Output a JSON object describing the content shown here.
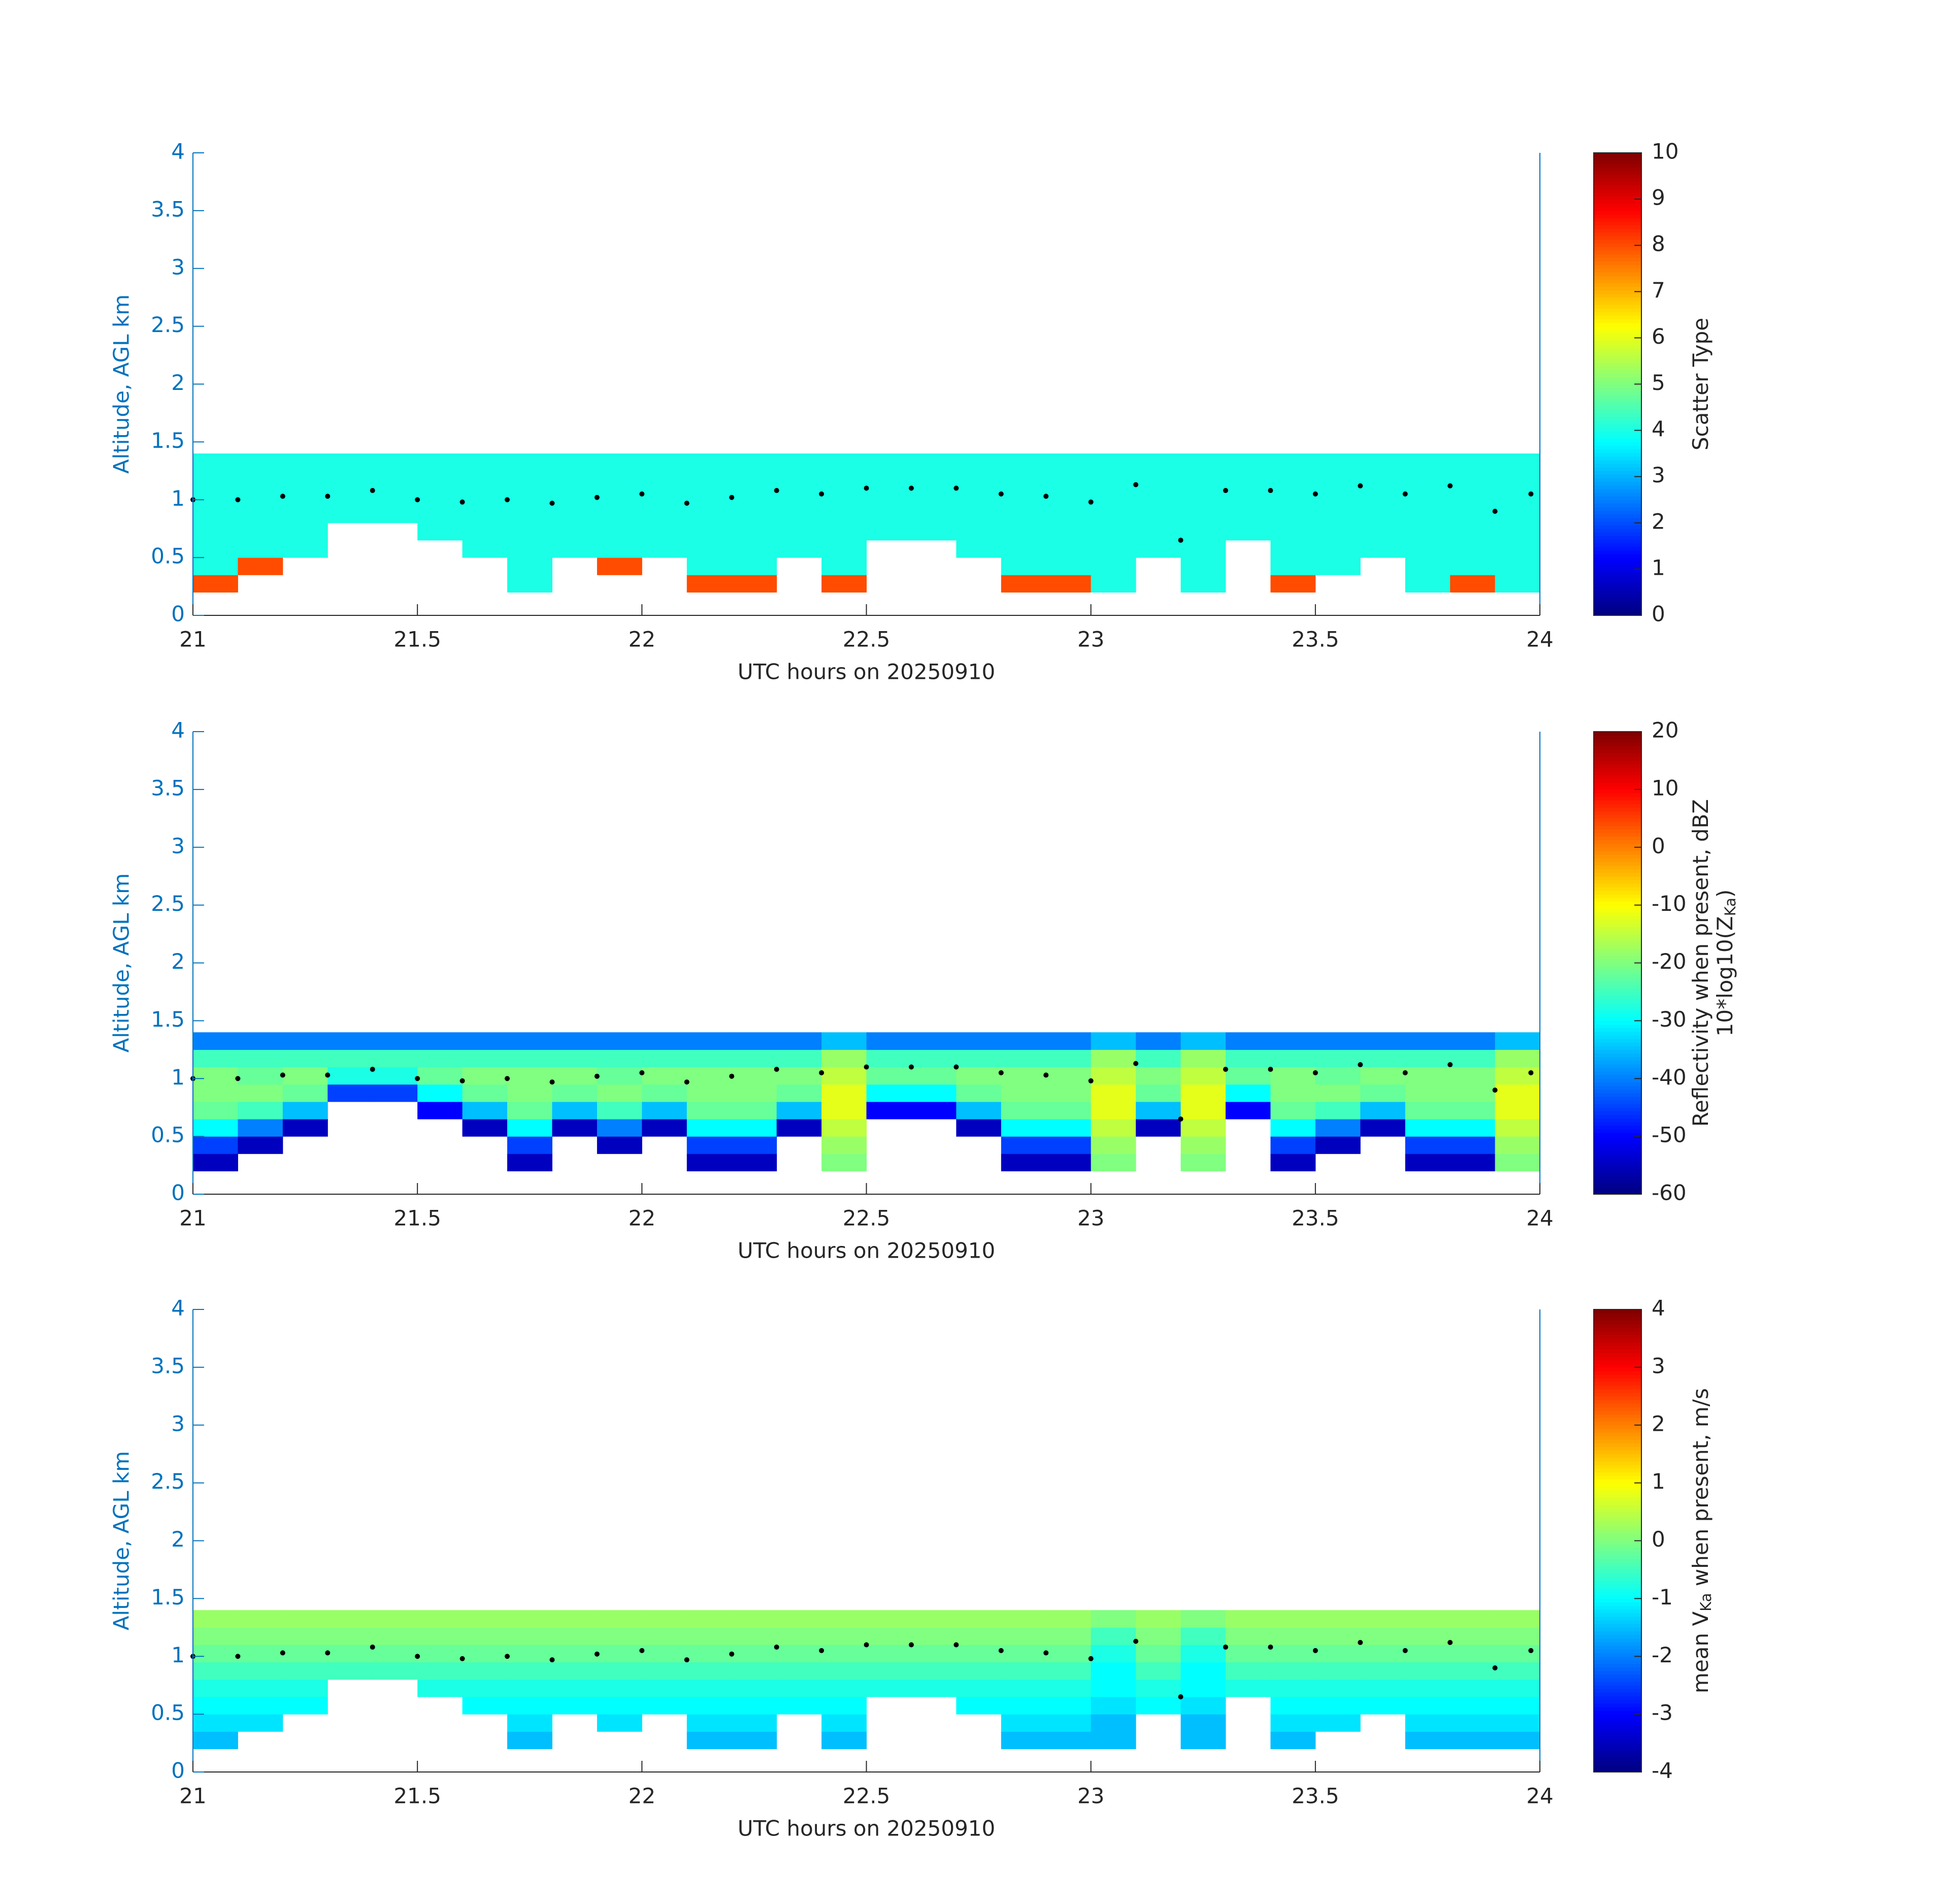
{
  "chart_data": [
    {
      "type": "heatmap",
      "colormap": "jet",
      "xlabel": "UTC hours on 20250910",
      "ylabel": "Altitude, AGL km",
      "colorbar_label": [
        [
          "Scatter Type"
        ]
      ],
      "xlim": [
        21,
        24
      ],
      "xticks": [
        21,
        21.5,
        22,
        22.5,
        23,
        23.5,
        24
      ],
      "ylim": [
        0,
        4
      ],
      "yticks": [
        0,
        0.5,
        1,
        1.5,
        2,
        2.5,
        3,
        3.5,
        4
      ],
      "clim": [
        0,
        10
      ],
      "cticks": [
        0,
        1,
        2,
        3,
        4,
        5,
        6,
        7,
        8,
        9,
        10
      ],
      "xbins": [
        21,
        21.1,
        21.2,
        21.3,
        21.4,
        21.5,
        21.6,
        21.7,
        21.8,
        21.9,
        22,
        22.1,
        22.2,
        22.3,
        22.4,
        22.5,
        22.6,
        22.7,
        22.8,
        22.9,
        23,
        23.1,
        23.2,
        23.3,
        23.4,
        23.5,
        23.6,
        23.7,
        23.8,
        23.9,
        24
      ],
      "ybins": [
        0.2,
        0.35,
        0.5,
        0.65,
        0.8,
        0.95,
        1.1,
        1.25,
        1.4
      ],
      "values": [
        [
          8,
          4,
          4,
          4,
          4,
          4,
          4,
          4
        ],
        [
          null,
          8,
          4,
          4,
          4,
          4,
          4,
          4
        ],
        [
          null,
          null,
          4,
          4,
          4,
          4,
          4,
          4
        ],
        [
          null,
          null,
          null,
          null,
          4,
          4,
          4,
          4
        ],
        [
          null,
          null,
          null,
          null,
          4,
          4,
          4,
          4
        ],
        [
          null,
          null,
          null,
          4,
          4,
          4,
          4,
          4
        ],
        [
          null,
          null,
          4,
          4,
          4,
          4,
          4,
          4
        ],
        [
          4,
          4,
          4,
          4,
          4,
          4,
          4,
          4
        ],
        [
          null,
          null,
          4,
          4,
          4,
          4,
          4,
          4
        ],
        [
          null,
          8,
          4,
          4,
          4,
          4,
          4,
          4
        ],
        [
          null,
          null,
          4,
          4,
          4,
          4,
          4,
          4
        ],
        [
          8,
          4,
          4,
          4,
          4,
          4,
          4,
          4
        ],
        [
          8,
          4,
          4,
          4,
          4,
          4,
          4,
          4
        ],
        [
          null,
          null,
          4,
          4,
          4,
          4,
          4,
          4
        ],
        [
          8,
          4,
          4,
          4,
          4,
          4,
          4,
          4
        ],
        [
          null,
          null,
          null,
          4,
          4,
          4,
          4,
          4
        ],
        [
          null,
          null,
          null,
          4,
          4,
          4,
          4,
          4
        ],
        [
          null,
          null,
          4,
          4,
          4,
          4,
          4,
          4
        ],
        [
          8,
          4,
          4,
          4,
          4,
          4,
          4,
          4
        ],
        [
          8,
          4,
          4,
          4,
          4,
          4,
          4,
          4
        ],
        [
          4,
          4,
          4,
          4,
          4,
          4,
          4,
          4
        ],
        [
          null,
          null,
          4,
          4,
          4,
          4,
          4,
          4
        ],
        [
          4,
          4,
          4,
          4,
          4,
          4,
          4,
          4
        ],
        [
          null,
          null,
          null,
          4,
          4,
          4,
          4,
          4
        ],
        [
          8,
          4,
          4,
          4,
          4,
          4,
          4,
          4
        ],
        [
          null,
          4,
          4,
          4,
          4,
          4,
          4,
          4
        ],
        [
          null,
          null,
          4,
          4,
          4,
          4,
          4,
          4
        ],
        [
          4,
          4,
          4,
          4,
          4,
          4,
          4,
          4
        ],
        [
          8,
          4,
          4,
          4,
          4,
          4,
          4,
          4
        ],
        [
          4,
          4,
          4,
          4,
          4,
          4,
          4,
          4
        ]
      ],
      "points": {
        "color": "#000000",
        "x": [
          21,
          21.1,
          21.2,
          21.3,
          21.4,
          21.5,
          21.6,
          21.7,
          21.8,
          21.9,
          22,
          22.1,
          22.2,
          22.3,
          22.4,
          22.5,
          22.6,
          22.7,
          22.8,
          22.9,
          23,
          23.1,
          23.2,
          23.3,
          23.4,
          23.5,
          23.6,
          23.7,
          23.8,
          23.9,
          23.98
        ],
        "y": [
          1.0,
          1.0,
          1.03,
          1.03,
          1.08,
          1.0,
          0.98,
          1.0,
          0.97,
          1.02,
          1.05,
          0.97,
          1.02,
          1.08,
          1.05,
          1.1,
          1.1,
          1.1,
          1.05,
          1.03,
          0.98,
          1.13,
          0.65,
          1.08,
          1.08,
          1.05,
          1.12,
          1.05,
          1.12,
          0.9,
          1.05
        ]
      }
    },
    {
      "type": "heatmap",
      "colormap": "jet",
      "xlabel": "UTC hours on 20250910",
      "ylabel": "Altitude, AGL km",
      "colorbar_label": [
        [
          "Reflectivity when present, dBZ"
        ],
        [
          "10*log10(Z",
          "Ka",
          ")"
        ]
      ],
      "xlim": [
        21,
        24
      ],
      "xticks": [
        21,
        21.5,
        22,
        22.5,
        23,
        23.5,
        24
      ],
      "ylim": [
        0,
        4
      ],
      "yticks": [
        0,
        0.5,
        1,
        1.5,
        2,
        2.5,
        3,
        3.5,
        4
      ],
      "clim": [
        -60,
        20
      ],
      "cticks": [
        -60,
        -50,
        -40,
        -30,
        -20,
        -10,
        0,
        10,
        20
      ],
      "xbins": [
        21,
        21.1,
        21.2,
        21.3,
        21.4,
        21.5,
        21.6,
        21.7,
        21.8,
        21.9,
        22,
        22.1,
        22.2,
        22.3,
        22.4,
        22.5,
        22.6,
        22.7,
        22.8,
        22.9,
        23,
        23.1,
        23.2,
        23.3,
        23.4,
        23.5,
        23.6,
        23.7,
        23.8,
        23.9,
        24
      ],
      "ybins": [
        0.2,
        0.35,
        0.5,
        0.65,
        0.8,
        0.95,
        1.1,
        1.25,
        1.4
      ],
      "values": [
        [
          -55,
          -45,
          -30,
          -22,
          -20,
          -20,
          -25,
          -40
        ],
        [
          null,
          -55,
          -40,
          -25,
          -20,
          -22,
          -25,
          -40
        ],
        [
          null,
          null,
          -55,
          -35,
          -22,
          -20,
          -25,
          -40
        ],
        [
          null,
          null,
          null,
          null,
          -45,
          -28,
          -25,
          -40
        ],
        [
          null,
          null,
          null,
          null,
          -45,
          -28,
          -25,
          -40
        ],
        [
          null,
          null,
          null,
          -50,
          -30,
          -22,
          -25,
          -40
        ],
        [
          null,
          null,
          -55,
          -35,
          -22,
          -20,
          -25,
          -40
        ],
        [
          -55,
          -45,
          -30,
          -22,
          -20,
          -20,
          -25,
          -40
        ],
        [
          null,
          null,
          -55,
          -35,
          -22,
          -20,
          -25,
          -40
        ],
        [
          null,
          -55,
          -40,
          -25,
          -20,
          -22,
          -25,
          -40
        ],
        [
          null,
          null,
          -55,
          -35,
          -22,
          -20,
          -25,
          -40
        ],
        [
          -55,
          -45,
          -30,
          -22,
          -20,
          -20,
          -25,
          -40
        ],
        [
          -55,
          -45,
          -30,
          -22,
          -20,
          -20,
          -25,
          -40
        ],
        [
          null,
          null,
          -55,
          -35,
          -22,
          -20,
          -25,
          -40
        ],
        [
          -20,
          -18,
          -15,
          -12,
          -12,
          -15,
          -18,
          -35
        ],
        [
          null,
          null,
          null,
          -50,
          -30,
          -22,
          -25,
          -40
        ],
        [
          null,
          null,
          null,
          -50,
          -30,
          -22,
          -25,
          -40
        ],
        [
          null,
          null,
          -55,
          -35,
          -22,
          -20,
          -25,
          -40
        ],
        [
          -55,
          -45,
          -30,
          -22,
          -20,
          -20,
          -25,
          -40
        ],
        [
          -55,
          -45,
          -30,
          -22,
          -20,
          -20,
          -25,
          -40
        ],
        [
          -20,
          -18,
          -15,
          -12,
          -12,
          -15,
          -18,
          -35
        ],
        [
          null,
          null,
          -55,
          -35,
          -22,
          -20,
          -25,
          -40
        ],
        [
          -20,
          -18,
          -15,
          -12,
          -12,
          -15,
          -18,
          -35
        ],
        [
          null,
          null,
          null,
          -50,
          -30,
          -22,
          -25,
          -40
        ],
        [
          -55,
          -45,
          -30,
          -22,
          -20,
          -20,
          -25,
          -40
        ],
        [
          null,
          -55,
          -40,
          -25,
          -20,
          -22,
          -25,
          -40
        ],
        [
          null,
          null,
          -55,
          -35,
          -22,
          -20,
          -25,
          -40
        ],
        [
          -55,
          -45,
          -30,
          -22,
          -20,
          -20,
          -25,
          -40
        ],
        [
          -55,
          -45,
          -30,
          -22,
          -20,
          -20,
          -25,
          -40
        ],
        [
          -20,
          -18,
          -15,
          -12,
          -12,
          -15,
          -18,
          -35
        ]
      ],
      "points": {
        "color": "#000000",
        "x": [
          21,
          21.1,
          21.2,
          21.3,
          21.4,
          21.5,
          21.6,
          21.7,
          21.8,
          21.9,
          22,
          22.1,
          22.2,
          22.3,
          22.4,
          22.5,
          22.6,
          22.7,
          22.8,
          22.9,
          23,
          23.1,
          23.2,
          23.3,
          23.4,
          23.5,
          23.6,
          23.7,
          23.8,
          23.9,
          23.98
        ],
        "y": [
          1.0,
          1.0,
          1.03,
          1.03,
          1.08,
          1.0,
          0.98,
          1.0,
          0.97,
          1.02,
          1.05,
          0.97,
          1.02,
          1.08,
          1.05,
          1.1,
          1.1,
          1.1,
          1.05,
          1.03,
          0.98,
          1.13,
          0.65,
          1.08,
          1.08,
          1.05,
          1.12,
          1.05,
          1.12,
          0.9,
          1.05
        ]
      }
    },
    {
      "type": "heatmap",
      "colormap": "jet",
      "xlabel": "UTC hours on 20250910",
      "ylabel": "Altitude, AGL km",
      "colorbar_label": [
        [
          "mean V",
          "Ka",
          " when present, m/s"
        ]
      ],
      "xlim": [
        21,
        24
      ],
      "xticks": [
        21,
        21.5,
        22,
        22.5,
        23,
        23.5,
        24
      ],
      "ylim": [
        0,
        4
      ],
      "yticks": [
        0,
        0.5,
        1,
        1.5,
        2,
        2.5,
        3,
        3.5,
        4
      ],
      "clim": [
        -4,
        4
      ],
      "cticks": [
        -4,
        -3,
        -2,
        -1,
        0,
        1,
        2,
        3,
        4
      ],
      "xbins": [
        21,
        21.1,
        21.2,
        21.3,
        21.4,
        21.5,
        21.6,
        21.7,
        21.8,
        21.9,
        22,
        22.1,
        22.2,
        22.3,
        22.4,
        22.5,
        22.6,
        22.7,
        22.8,
        22.9,
        23,
        23.1,
        23.2,
        23.3,
        23.4,
        23.5,
        23.6,
        23.7,
        23.8,
        23.9,
        24
      ],
      "ybins": [
        0.2,
        0.35,
        0.5,
        0.65,
        0.8,
        0.95,
        1.1,
        1.25,
        1.4
      ],
      "values": [
        [
          -1.5,
          -1.2,
          -1,
          -0.8,
          -0.5,
          -0.2,
          0,
          0.2
        ],
        [
          null,
          -1.2,
          -1,
          -0.8,
          -0.5,
          -0.2,
          0,
          0.2
        ],
        [
          null,
          null,
          -1,
          -0.8,
          -0.5,
          -0.2,
          0,
          0.2
        ],
        [
          null,
          null,
          null,
          null,
          -0.5,
          -0.2,
          0,
          0.2
        ],
        [
          null,
          null,
          null,
          null,
          -0.5,
          -0.2,
          0,
          0.2
        ],
        [
          null,
          null,
          null,
          -0.8,
          -0.5,
          -0.2,
          0,
          0.2
        ],
        [
          null,
          null,
          -1,
          -0.8,
          -0.5,
          -0.2,
          0,
          0.2
        ],
        [
          -1.5,
          -1.2,
          -1,
          -0.8,
          -0.5,
          -0.2,
          0,
          0.2
        ],
        [
          null,
          null,
          -1,
          -0.8,
          -0.5,
          -0.2,
          0,
          0.2
        ],
        [
          null,
          -1.2,
          -1,
          -0.8,
          -0.5,
          -0.2,
          0,
          0.2
        ],
        [
          null,
          null,
          -1,
          -0.8,
          -0.5,
          -0.2,
          0,
          0.2
        ],
        [
          -1.5,
          -1.2,
          -1,
          -0.8,
          -0.5,
          -0.2,
          0,
          0.2
        ],
        [
          -1.5,
          -1.2,
          -1,
          -0.8,
          -0.5,
          -0.2,
          0,
          0.2
        ],
        [
          null,
          null,
          -1,
          -0.8,
          -0.5,
          -0.2,
          0,
          0.2
        ],
        [
          -1.5,
          -1.2,
          -1,
          -0.8,
          -0.5,
          -0.2,
          0,
          0.2
        ],
        [
          null,
          null,
          null,
          -0.8,
          -0.5,
          -0.2,
          0,
          0.2
        ],
        [
          null,
          null,
          null,
          -0.8,
          -0.5,
          -0.2,
          0,
          0.2
        ],
        [
          null,
          null,
          -1,
          -0.8,
          -0.5,
          -0.2,
          0,
          0.2
        ],
        [
          -1.5,
          -1.2,
          -1,
          -0.8,
          -0.5,
          -0.2,
          0,
          0.2
        ],
        [
          -1.5,
          -1.2,
          -1,
          -0.8,
          -0.5,
          -0.2,
          0,
          0.2
        ],
        [
          -1.5,
          -1.5,
          -1.2,
          -1,
          -1,
          -0.8,
          -0.5,
          0
        ],
        [
          null,
          null,
          -1,
          -0.8,
          -0.5,
          -0.2,
          0,
          0.2
        ],
        [
          -1.5,
          -1.5,
          -1.2,
          -1,
          -1,
          -0.8,
          -0.5,
          0
        ],
        [
          null,
          null,
          null,
          -0.8,
          -0.5,
          -0.2,
          0,
          0.2
        ],
        [
          -1.5,
          -1.2,
          -1,
          -0.8,
          -0.5,
          -0.2,
          0,
          0.2
        ],
        [
          null,
          -1.2,
          -1,
          -0.8,
          -0.5,
          -0.2,
          0,
          0.2
        ],
        [
          null,
          null,
          -1,
          -0.8,
          -0.5,
          -0.2,
          0,
          0.2
        ],
        [
          -1.5,
          -1.2,
          -1,
          -0.8,
          -0.5,
          -0.2,
          0,
          0.2
        ],
        [
          -1.5,
          -1.2,
          -1,
          -0.8,
          -0.5,
          -0.2,
          0,
          0.2
        ],
        [
          -1.5,
          -1.2,
          -1,
          -0.8,
          -0.5,
          -0.2,
          0,
          0.2
        ]
      ],
      "points": {
        "color": "#000000",
        "x": [
          21,
          21.1,
          21.2,
          21.3,
          21.4,
          21.5,
          21.6,
          21.7,
          21.8,
          21.9,
          22,
          22.1,
          22.2,
          22.3,
          22.4,
          22.5,
          22.6,
          22.7,
          22.8,
          22.9,
          23,
          23.1,
          23.2,
          23.3,
          23.4,
          23.5,
          23.6,
          23.7,
          23.8,
          23.9,
          23.98
        ],
        "y": [
          1.0,
          1.0,
          1.03,
          1.03,
          1.08,
          1.0,
          0.98,
          1.0,
          0.97,
          1.02,
          1.05,
          0.97,
          1.02,
          1.08,
          1.05,
          1.1,
          1.1,
          1.1,
          1.05,
          1.03,
          0.98,
          1.13,
          0.65,
          1.08,
          1.08,
          1.05,
          1.12,
          1.05,
          1.12,
          0.9,
          1.05
        ]
      }
    }
  ]
}
